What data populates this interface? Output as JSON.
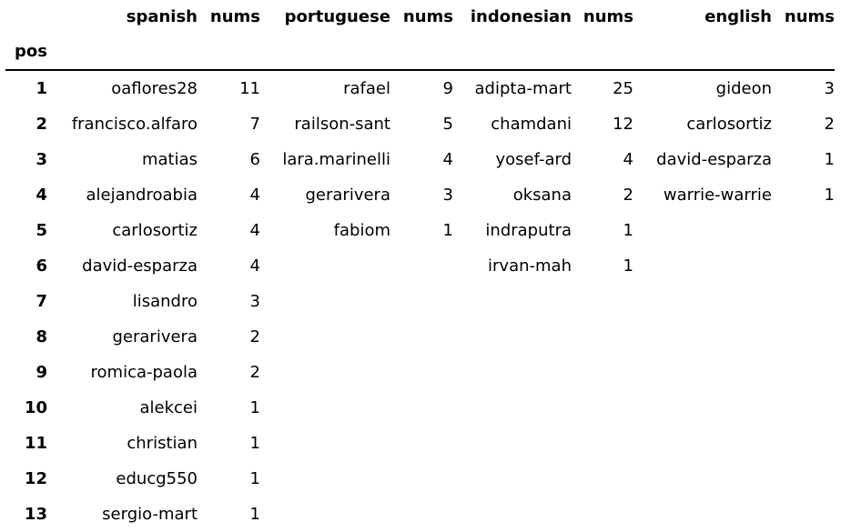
{
  "table": {
    "header_columns": [
      "spanish",
      "nums",
      "portuguese",
      "nums",
      "indonesian",
      "nums",
      "english",
      "nums"
    ],
    "index_name": "pos",
    "rows": [
      {
        "pos": "1",
        "cells": [
          "oaflores28",
          "11",
          "rafael",
          "9",
          "adipta-mart",
          "25",
          "gideon",
          "3"
        ]
      },
      {
        "pos": "2",
        "cells": [
          "francisco.alfaro",
          "7",
          "railson-sant",
          "5",
          "chamdani",
          "12",
          "carlosortiz",
          "2"
        ]
      },
      {
        "pos": "3",
        "cells": [
          "matias",
          "6",
          "lara.marinelli",
          "4",
          "yosef-ard",
          "4",
          "david-esparza",
          "1"
        ]
      },
      {
        "pos": "4",
        "cells": [
          "alejandroabia",
          "4",
          "gerarivera",
          "3",
          "oksana",
          "2",
          "warrie-warrie",
          "1"
        ]
      },
      {
        "pos": "5",
        "cells": [
          "carlosortiz",
          "4",
          "fabiom",
          "1",
          "indraputra",
          "1",
          "",
          ""
        ]
      },
      {
        "pos": "6",
        "cells": [
          "david-esparza",
          "4",
          "",
          "",
          "irvan-mah",
          "1",
          "",
          ""
        ]
      },
      {
        "pos": "7",
        "cells": [
          "lisandro",
          "3",
          "",
          "",
          "",
          "",
          "",
          ""
        ]
      },
      {
        "pos": "8",
        "cells": [
          "gerarivera",
          "2",
          "",
          "",
          "",
          "",
          "",
          ""
        ]
      },
      {
        "pos": "9",
        "cells": [
          "romica-paola",
          "2",
          "",
          "",
          "",
          "",
          "",
          ""
        ]
      },
      {
        "pos": "10",
        "cells": [
          "alekcei",
          "1",
          "",
          "",
          "",
          "",
          "",
          ""
        ]
      },
      {
        "pos": "11",
        "cells": [
          "christian",
          "1",
          "",
          "",
          "",
          "",
          "",
          ""
        ]
      },
      {
        "pos": "12",
        "cells": [
          "educg550",
          "1",
          "",
          "",
          "",
          "",
          "",
          ""
        ]
      },
      {
        "pos": "13",
        "cells": [
          "sergio-mart",
          "1",
          "",
          "",
          "",
          "",
          "",
          ""
        ]
      }
    ]
  }
}
